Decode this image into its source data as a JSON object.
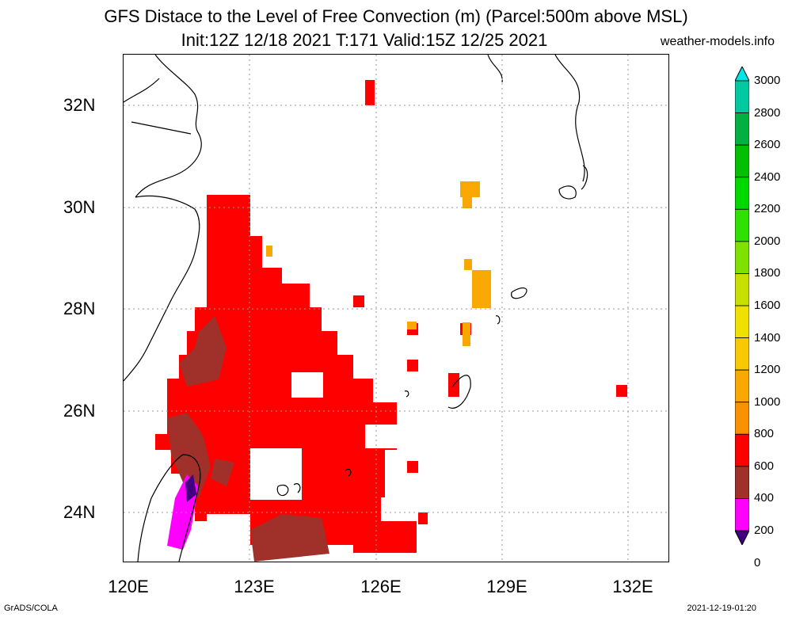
{
  "header": {
    "title_line1": "GFS Distace to the Level of Free Convection (m) (Parcel:500m above MSL)",
    "title_line2": "Init:12Z 12/18 2021 T:171 Valid:15Z 12/25 2021",
    "site": "weather-models.info"
  },
  "axes": {
    "lat_labels": [
      "32N",
      "30N",
      "28N",
      "26N",
      "24N"
    ],
    "lon_labels": [
      "120E",
      "123E",
      "126E",
      "129E",
      "132E"
    ]
  },
  "colorbar": {
    "labels": [
      "3000",
      "2800",
      "2600",
      "2400",
      "2200",
      "2000",
      "1800",
      "1600",
      "1400",
      "1200",
      "1000",
      "800",
      "600",
      "400",
      "200",
      "0"
    ],
    "colors": [
      "#00e5e5",
      "#00c8a0",
      "#00b040",
      "#00c000",
      "#00d800",
      "#30e000",
      "#80e000",
      "#c8e000",
      "#f0e000",
      "#f8c800",
      "#f8a800",
      "#f89000",
      "#ff0000",
      "#a0302a",
      "#ff00ff",
      "#400080"
    ]
  },
  "footer": {
    "left": "GrADS/COLA",
    "right": "2021-12-19-01:20"
  }
}
